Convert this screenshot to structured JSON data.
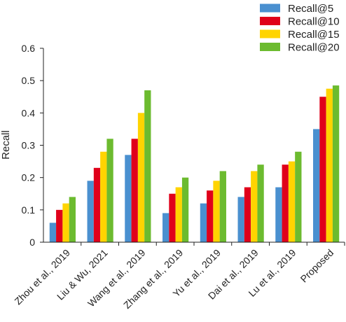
{
  "chart_data": {
    "type": "bar",
    "ylabel": "Recall",
    "ylim": [
      0,
      0.6
    ],
    "yticks": [
      "0",
      "0.1",
      "0.2",
      "0.3",
      "0.4",
      "0.5",
      "0.6"
    ],
    "categories": [
      "Zhou et al., 2019",
      "Liu & Wu, 2021",
      "Wang et al., 2019",
      "Zhang et al., 2019",
      "Yu et al., 2019",
      "Dai et al., 2019",
      "Lu et al., 2019",
      "Proposed"
    ],
    "series": [
      {
        "name": "Recall@5",
        "color": "#4a90d0",
        "values": [
          0.06,
          0.19,
          0.27,
          0.09,
          0.12,
          0.14,
          0.17,
          0.35
        ]
      },
      {
        "name": "Recall@10",
        "color": "#e0001a",
        "values": [
          0.1,
          0.23,
          0.32,
          0.15,
          0.16,
          0.17,
          0.24,
          0.45
        ]
      },
      {
        "name": "Recall@15",
        "color": "#ffd400",
        "values": [
          0.12,
          0.28,
          0.4,
          0.17,
          0.19,
          0.22,
          0.25,
          0.475
        ]
      },
      {
        "name": "Recall@20",
        "color": "#6cbb2f",
        "values": [
          0.14,
          0.32,
          0.47,
          0.2,
          0.22,
          0.24,
          0.28,
          0.485
        ]
      }
    ],
    "legend_position": "top-right",
    "grid": false
  }
}
